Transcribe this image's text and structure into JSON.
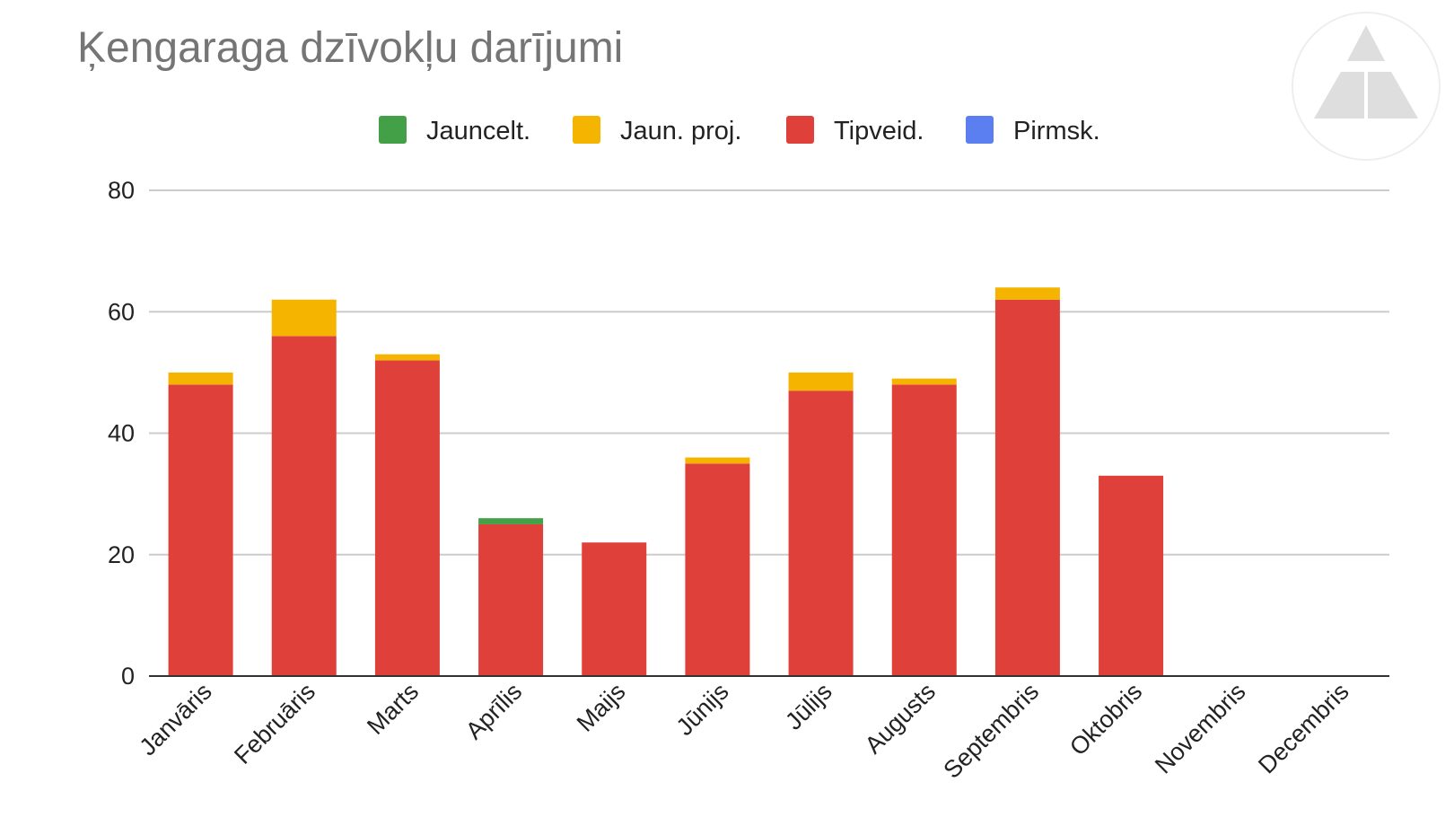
{
  "chart_data": {
    "type": "bar",
    "stacked": true,
    "title": "Ķengaraga dzīvokļu darījumi",
    "categories": [
      "Janvāris",
      "Februāris",
      "Marts",
      "Aprīlis",
      "Maijs",
      "Jūnijs",
      "Jūlijs",
      "Augusts",
      "Septembris",
      "Oktobris",
      "Novembris",
      "Decembris"
    ],
    "series": [
      {
        "name": "Jauncelt.",
        "color": "#43a047",
        "values": [
          0,
          0,
          0,
          1,
          0,
          0,
          0,
          0,
          0,
          0,
          0,
          0
        ]
      },
      {
        "name": "Jaun. proj.",
        "color": "#f4b400",
        "values": [
          2,
          6,
          1,
          0,
          0,
          1,
          3,
          1,
          2,
          0,
          0,
          0
        ]
      },
      {
        "name": "Tipveid.",
        "color": "#e0403a",
        "values": [
          48,
          56,
          52,
          25,
          22,
          35,
          47,
          48,
          62,
          33,
          0,
          0
        ]
      },
      {
        "name": "Pirmsk.",
        "color": "#5b7ff0",
        "values": [
          0,
          0,
          0,
          0,
          0,
          0,
          0,
          0,
          0,
          0,
          0,
          0
        ]
      }
    ],
    "stack_order": [
      "Pirmsk.",
      "Tipveid.",
      "Jauncelt.",
      "Jaun. proj."
    ],
    "ylim": [
      0,
      80
    ],
    "yticks": [
      0,
      20,
      40,
      60,
      80
    ],
    "xlabel": "",
    "ylabel": "",
    "grid": true,
    "legend_position": "top"
  },
  "logo": {
    "icon": "triangle-logo-icon"
  }
}
